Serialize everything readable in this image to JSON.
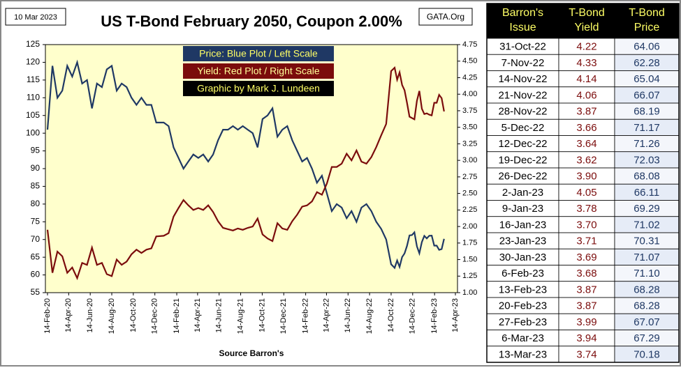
{
  "chart_data": {
    "type": "line",
    "title": "US T-Bond February 2050, Coupon 2.00%",
    "date_label": "10 Mar 2023",
    "source_label": "GATA.Org",
    "x_label": "Source Barron's",
    "credit": "Graphic by Mark J. Lundeen",
    "xlim": [
      "2020-02-14",
      "2023-04-14"
    ],
    "xticks": [
      {
        "value": "2020-02-14",
        "label": "14-Feb-20"
      },
      {
        "value": "2020-04-14",
        "label": "14-Apr-20"
      },
      {
        "value": "2020-06-14",
        "label": "14-Jun-20"
      },
      {
        "value": "2020-08-14",
        "label": "14-Aug-20"
      },
      {
        "value": "2020-10-14",
        "label": "14-Oct-20"
      },
      {
        "value": "2020-12-14",
        "label": "14-Dec-20"
      },
      {
        "value": "2021-02-14",
        "label": "14-Feb-21"
      },
      {
        "value": "2021-04-14",
        "label": "14-Apr-21"
      },
      {
        "value": "2021-06-14",
        "label": "14-Jun-21"
      },
      {
        "value": "2021-08-14",
        "label": "14-Aug-21"
      },
      {
        "value": "2021-10-14",
        "label": "14-Oct-21"
      },
      {
        "value": "2021-12-14",
        "label": "14-Dec-21"
      },
      {
        "value": "2022-02-14",
        "label": "14-Feb-22"
      },
      {
        "value": "2022-04-14",
        "label": "14-Apr-22"
      },
      {
        "value": "2022-06-14",
        "label": "14-Jun-22"
      },
      {
        "value": "2022-08-14",
        "label": "14-Aug-22"
      },
      {
        "value": "2022-10-14",
        "label": "14-Oct-22"
      },
      {
        "value": "2022-12-14",
        "label": "14-Dec-22"
      },
      {
        "value": "2023-02-14",
        "label": "14-Feb-23"
      },
      {
        "value": "2023-04-14",
        "label": "14-Apr-23"
      }
    ],
    "ylim": [
      55,
      125
    ],
    "yticks": [
      55,
      60,
      65,
      70,
      75,
      80,
      85,
      90,
      95,
      100,
      105,
      110,
      115,
      120,
      125
    ],
    "y2lim": [
      1.0,
      4.75
    ],
    "y2ticks": [
      {
        "value": 1.0,
        "label": "1.00"
      },
      1.25,
      {
        "value": 1.5,
        "label": "1.50"
      },
      1.75,
      {
        "value": 2.0,
        "label": "2.00"
      },
      2.25,
      {
        "value": 2.5,
        "label": "2.50"
      },
      2.75,
      {
        "value": 3.0,
        "label": "3.00"
      },
      3.25,
      {
        "value": 3.5,
        "label": "3.50"
      },
      3.75,
      {
        "value": 4.0,
        "label": "4.00"
      },
      4.25,
      {
        "value": 4.5,
        "label": "4.50"
      },
      4.75
    ],
    "x": [
      "2020-02-14",
      "2020-02-28",
      "2020-03-13",
      "2020-03-27",
      "2020-04-10",
      "2020-04-24",
      "2020-05-08",
      "2020-05-22",
      "2020-06-05",
      "2020-06-19",
      "2020-07-03",
      "2020-07-17",
      "2020-07-31",
      "2020-08-14",
      "2020-08-28",
      "2020-09-11",
      "2020-09-25",
      "2020-10-09",
      "2020-10-23",
      "2020-11-06",
      "2020-11-20",
      "2020-12-04",
      "2020-12-18",
      "2021-01-08",
      "2021-01-22",
      "2021-02-05",
      "2021-02-19",
      "2021-03-05",
      "2021-03-19",
      "2021-04-02",
      "2021-04-16",
      "2021-04-30",
      "2021-05-14",
      "2021-05-28",
      "2021-06-11",
      "2021-06-25",
      "2021-07-09",
      "2021-07-23",
      "2021-08-06",
      "2021-08-20",
      "2021-09-03",
      "2021-09-17",
      "2021-10-01",
      "2021-10-15",
      "2021-10-29",
      "2021-11-12",
      "2021-11-26",
      "2021-12-10",
      "2021-12-24",
      "2022-01-07",
      "2022-01-21",
      "2022-02-04",
      "2022-02-18",
      "2022-03-04",
      "2022-03-18",
      "2022-04-01",
      "2022-04-15",
      "2022-04-29",
      "2022-05-13",
      "2022-05-27",
      "2022-06-10",
      "2022-06-24",
      "2022-07-08",
      "2022-07-22",
      "2022-08-05",
      "2022-08-19",
      "2022-09-02",
      "2022-09-16",
      "2022-09-30",
      "2022-10-14",
      "2022-10-24",
      "2022-10-31",
      "2022-11-07",
      "2022-11-14",
      "2022-11-21",
      "2022-11-28",
      "2022-12-05",
      "2022-12-12",
      "2022-12-19",
      "2022-12-26",
      "2023-01-02",
      "2023-01-09",
      "2023-01-16",
      "2023-01-23",
      "2023-01-30",
      "2023-02-06",
      "2023-02-13",
      "2023-02-20",
      "2023-02-27",
      "2023-03-06",
      "2023-03-13"
    ],
    "series": [
      {
        "name": "Price:  Blue Plot / Left Scale",
        "color": "#1f3864",
        "axis": "y",
        "values": [
          101,
          119,
          110,
          112,
          119,
          116,
          120,
          114,
          115,
          107,
          114,
          113,
          118,
          119,
          112,
          114,
          113,
          110,
          108,
          110,
          108,
          108,
          103,
          103,
          102,
          96,
          93,
          90,
          92,
          94,
          93,
          94,
          92,
          94,
          98,
          101,
          101,
          102,
          101,
          102,
          101,
          100,
          96,
          104,
          105,
          107,
          99,
          101,
          102,
          98,
          95,
          92,
          93,
          90,
          86,
          88,
          83,
          78,
          80,
          79,
          76,
          78,
          75,
          79,
          80,
          78,
          75,
          73,
          70,
          63,
          62,
          64.06,
          62.28,
          65.04,
          66.07,
          68.19,
          71.17,
          71.26,
          72.03,
          68.08,
          66.11,
          69.29,
          71.02,
          70.31,
          71.07,
          71.1,
          68.28,
          68.28,
          67.07,
          67.29,
          70.18
        ]
      },
      {
        "name": "Yield:  Red Plot / Right Scale",
        "color": "#7b0c0c",
        "axis": "y2",
        "values": [
          1.95,
          1.3,
          1.62,
          1.55,
          1.3,
          1.38,
          1.22,
          1.45,
          1.42,
          1.68,
          1.42,
          1.45,
          1.28,
          1.25,
          1.5,
          1.42,
          1.47,
          1.58,
          1.65,
          1.6,
          1.65,
          1.67,
          1.85,
          1.86,
          1.9,
          2.15,
          2.28,
          2.4,
          2.32,
          2.25,
          2.28,
          2.25,
          2.32,
          2.22,
          2.08,
          1.98,
          1.96,
          1.94,
          1.97,
          1.95,
          1.98,
          2.0,
          2.12,
          1.88,
          1.82,
          1.78,
          2.05,
          1.97,
          1.95,
          2.08,
          2.18,
          2.3,
          2.32,
          2.38,
          2.52,
          2.48,
          2.65,
          2.9,
          2.9,
          2.95,
          3.1,
          3.0,
          3.15,
          2.98,
          2.95,
          3.05,
          3.2,
          3.38,
          3.55,
          4.35,
          4.4,
          4.22,
          4.33,
          4.14,
          4.06,
          3.87,
          3.66,
          3.64,
          3.62,
          3.9,
          4.05,
          3.78,
          3.7,
          3.71,
          3.69,
          3.68,
          3.87,
          3.87,
          3.99,
          3.94,
          3.74
        ]
      }
    ]
  },
  "table": {
    "headers": [
      [
        "Barron's",
        "Issue"
      ],
      [
        "T-Bond",
        "Yield"
      ],
      [
        "T-Bond",
        "Price"
      ]
    ],
    "rows": [
      [
        "31-Oct-22",
        "4.22",
        "64.06"
      ],
      [
        "7-Nov-22",
        "4.33",
        "62.28"
      ],
      [
        "14-Nov-22",
        "4.14",
        "65.04"
      ],
      [
        "21-Nov-22",
        "4.06",
        "66.07"
      ],
      [
        "28-Nov-22",
        "3.87",
        "68.19"
      ],
      [
        "5-Dec-22",
        "3.66",
        "71.17"
      ],
      [
        "12-Dec-22",
        "3.64",
        "71.26"
      ],
      [
        "19-Dec-22",
        "3.62",
        "72.03"
      ],
      [
        "26-Dec-22",
        "3.90",
        "68.08"
      ],
      [
        "2-Jan-23",
        "4.05",
        "66.11"
      ],
      [
        "9-Jan-23",
        "3.78",
        "69.29"
      ],
      [
        "16-Jan-23",
        "3.70",
        "71.02"
      ],
      [
        "23-Jan-23",
        "3.71",
        "70.31"
      ],
      [
        "30-Jan-23",
        "3.69",
        "71.07"
      ],
      [
        "6-Feb-23",
        "3.68",
        "71.10"
      ],
      [
        "13-Feb-23",
        "3.87",
        "68.28"
      ],
      [
        "20-Feb-23",
        "3.87",
        "68.28"
      ],
      [
        "27-Feb-23",
        "3.99",
        "67.07"
      ],
      [
        "6-Mar-23",
        "3.94",
        "67.29"
      ],
      [
        "13-Mar-23",
        "3.74",
        "70.18"
      ]
    ]
  }
}
